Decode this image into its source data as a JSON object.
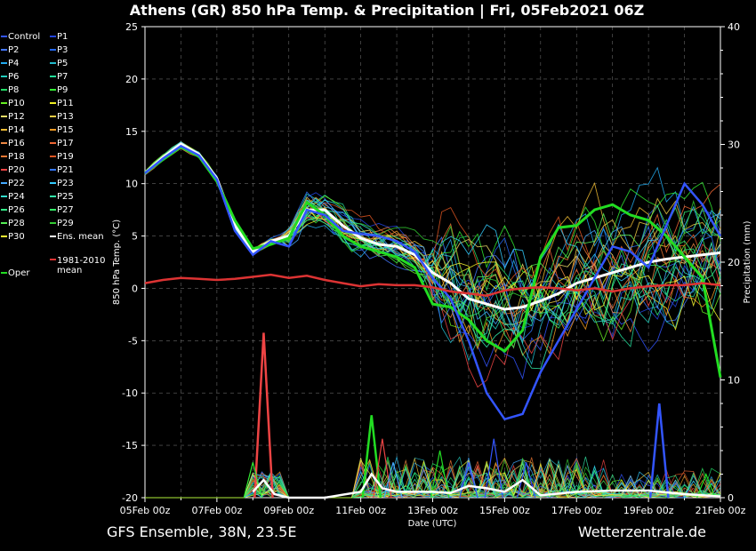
{
  "chart_data": {
    "type": "line",
    "title": "Athens  (GR)  850 hPa Temp. & Precipitation | Fri, 05Feb2021 06Z",
    "xlabel": "Date (UTC)",
    "ylabel_left": "850 hPa Temp. (°C)",
    "ylabel_right": "Precipitation (mm)",
    "xlim": [
      0,
      16
    ],
    "ylim_left": [
      -20,
      25
    ],
    "ylim_right": [
      0,
      40
    ],
    "x_ticks": [
      "05Feb 00z",
      "07Feb 00z",
      "09Feb 00z",
      "11Feb 00z",
      "13Feb 00z",
      "15Feb 00z",
      "17Feb 00z",
      "19Feb 00z",
      "21Feb 00z"
    ],
    "y_ticks_left": [
      "25",
      "20",
      "15",
      "10",
      "5",
      "0",
      "-5",
      "-10",
      "-15",
      "-20"
    ],
    "y_ticks_right": [
      "40",
      "30",
      "20",
      "10",
      "0"
    ],
    "grid": true,
    "legend_position": "left",
    "legend": [
      {
        "label": "Control",
        "color": "#3355ff"
      },
      {
        "label": "P1",
        "color": "#2244dd"
      },
      {
        "label": "P2",
        "color": "#4477ff"
      },
      {
        "label": "P3",
        "color": "#2266ee"
      },
      {
        "label": "P4",
        "color": "#22aaee"
      },
      {
        "label": "P5",
        "color": "#22bbcc"
      },
      {
        "label": "P6",
        "color": "#22ccbb"
      },
      {
        "label": "P7",
        "color": "#22dd99"
      },
      {
        "label": "P8",
        "color": "#22dd66"
      },
      {
        "label": "P9",
        "color": "#33ee33"
      },
      {
        "label": "P10",
        "color": "#66ee22"
      },
      {
        "label": "P11",
        "color": "#eeee22"
      },
      {
        "label": "P12",
        "color": "#eedd66"
      },
      {
        "label": "P13",
        "color": "#eecc44"
      },
      {
        "label": "P14",
        "color": "#eebb33"
      },
      {
        "label": "P15",
        "color": "#ee9922"
      },
      {
        "label": "P16",
        "color": "#ee8844"
      },
      {
        "label": "P17",
        "color": "#ee6633"
      },
      {
        "label": "P18",
        "color": "#ee7733"
      },
      {
        "label": "P19",
        "color": "#dd5522"
      },
      {
        "label": "P20",
        "color": "#ee4444"
      },
      {
        "label": "P21",
        "color": "#3377ff"
      },
      {
        "label": "P22",
        "color": "#44aaff"
      },
      {
        "label": "P23",
        "color": "#33ccff"
      },
      {
        "label": "P24",
        "color": "#33ddcc"
      },
      {
        "label": "P25",
        "color": "#33eeaa"
      },
      {
        "label": "P26",
        "color": "#33ee88"
      },
      {
        "label": "P27",
        "color": "#33ee66"
      },
      {
        "label": "P28",
        "color": "#55ee55"
      },
      {
        "label": "P29",
        "color": "#33cc33"
      },
      {
        "label": "P30",
        "color": "#ffff33"
      },
      {
        "label": "Ens. mean",
        "color": "#ffffff"
      },
      {
        "label": "Oper",
        "color": "#22dd22"
      },
      {
        "label": "1981-2010 mean",
        "color": "#dd3333"
      }
    ],
    "series": [
      {
        "name": "Ens. mean",
        "color": "#ffffff",
        "x": [
          0,
          0.5,
          1,
          1.5,
          2,
          2.5,
          3,
          3.5,
          4,
          4.5,
          5,
          5.5,
          6,
          6.5,
          7,
          7.5,
          8,
          8.5,
          9,
          9.5,
          10,
          10.5,
          11,
          11.5,
          12,
          12.5,
          13,
          13.5,
          14,
          14.5,
          15,
          15.5,
          16
        ],
        "values": [
          11,
          12.5,
          13.8,
          12.8,
          10.5,
          6,
          3.5,
          4.5,
          5,
          7.5,
          7.5,
          6,
          4.8,
          4.2,
          4,
          3.2,
          1.5,
          0.5,
          -1,
          -1.5,
          -2,
          -1.8,
          -1.2,
          -0.5,
          0.5,
          1,
          1.5,
          2,
          2.5,
          2.8,
          3,
          3.2,
          3.4
        ]
      },
      {
        "name": "Oper",
        "color": "#22dd22",
        "x": [
          0,
          0.5,
          1,
          1.5,
          2,
          2.5,
          3,
          3.5,
          4,
          4.5,
          5,
          5.5,
          6,
          6.5,
          7,
          7.5,
          8,
          8.5,
          9,
          9.5,
          10,
          10.5,
          11,
          11.5,
          12,
          12.5,
          13,
          13.5,
          14,
          14.5,
          15,
          15.5,
          16
        ],
        "values": [
          11,
          12.3,
          13.5,
          12.6,
          10.2,
          6.5,
          3.8,
          4.2,
          4.8,
          8.2,
          7,
          5,
          4,
          3.5,
          3,
          2,
          -1.5,
          -1.8,
          -3,
          -5,
          -6,
          -4,
          3,
          5.8,
          6,
          7.5,
          8,
          7,
          6.5,
          5,
          3,
          1,
          -8.5
        ]
      },
      {
        "name": "Control",
        "color": "#3355ff",
        "x": [
          0,
          0.5,
          1,
          1.5,
          2,
          2.5,
          3,
          3.5,
          4,
          4.5,
          5,
          5.5,
          6,
          6.5,
          7,
          7.5,
          8,
          8.5,
          9,
          9.5,
          10,
          10.5,
          11,
          11.5,
          12,
          12.5,
          13,
          13.5,
          14,
          14.5,
          15,
          15.5,
          16
        ],
        "values": [
          11,
          12.4,
          13.6,
          12.7,
          10.4,
          5.5,
          3.2,
          4.5,
          4,
          7.5,
          7,
          5.5,
          5.2,
          5,
          4.5,
          3.5,
          1,
          -1,
          -5,
          -10,
          -12.5,
          -12,
          -8,
          -5,
          -2,
          1,
          4,
          3.5,
          2,
          6,
          10,
          8,
          5
        ]
      },
      {
        "name": "1981-2010 mean",
        "color": "#dd3333",
        "x": [
          0,
          0.5,
          1,
          1.5,
          2,
          2.5,
          3,
          3.5,
          4,
          4.5,
          5,
          5.5,
          6,
          6.5,
          7,
          7.5,
          8,
          8.5,
          9,
          9.5,
          10,
          10.5,
          11,
          11.5,
          12,
          12.5,
          13,
          13.5,
          14,
          14.5,
          15,
          15.5,
          16
        ],
        "values": [
          0.5,
          0.8,
          1,
          0.9,
          0.8,
          0.9,
          1.1,
          1.3,
          1,
          1.2,
          0.8,
          0.5,
          0.2,
          0.4,
          0.3,
          0.3,
          0.1,
          -0.3,
          -0.5,
          -0.7,
          -0.2,
          0,
          0.1,
          0,
          -0.2,
          0,
          -0.3,
          0,
          0.2,
          0.3,
          0.3,
          0.5,
          0.3
        ]
      }
    ],
    "precip_peaks": [
      {
        "x": 3.3,
        "mm": 14,
        "color": "#ee4444"
      },
      {
        "x": 3.0,
        "mm": 3,
        "color": "#33ee33"
      },
      {
        "x": 6.3,
        "mm": 7,
        "color": "#22dd22"
      },
      {
        "x": 6.6,
        "mm": 5,
        "color": "#ee4444"
      },
      {
        "x": 6.9,
        "mm": 3,
        "color": "#44aaff"
      },
      {
        "x": 8.2,
        "mm": 4,
        "color": "#22dd22"
      },
      {
        "x": 9.0,
        "mm": 3,
        "color": "#3355ff"
      },
      {
        "x": 9.7,
        "mm": 5,
        "color": "#3355ff"
      },
      {
        "x": 10.6,
        "mm": 3,
        "color": "#3355ff"
      },
      {
        "x": 14.3,
        "mm": 8,
        "color": "#3355ff"
      },
      {
        "x": 15.6,
        "mm": 2,
        "color": "#22dd22"
      }
    ],
    "precip_mean": {
      "x": [
        3,
        3.3,
        3.6,
        4,
        5,
        6,
        6.3,
        6.6,
        7,
        8,
        8.5,
        9,
        9.5,
        10,
        10.5,
        11,
        12,
        13,
        14,
        15,
        16
      ],
      "values": [
        0.5,
        1.5,
        0.3,
        0,
        0,
        0.5,
        2,
        0.8,
        0.5,
        0.5,
        0.4,
        1,
        0.8,
        0.5,
        1.5,
        0.2,
        0.5,
        0.6,
        0.6,
        0.3,
        0.1
      ]
    }
  },
  "footer": {
    "left": "GFS Ensemble, 38N, 23.5E",
    "right": "Wetterzentrale.de"
  }
}
